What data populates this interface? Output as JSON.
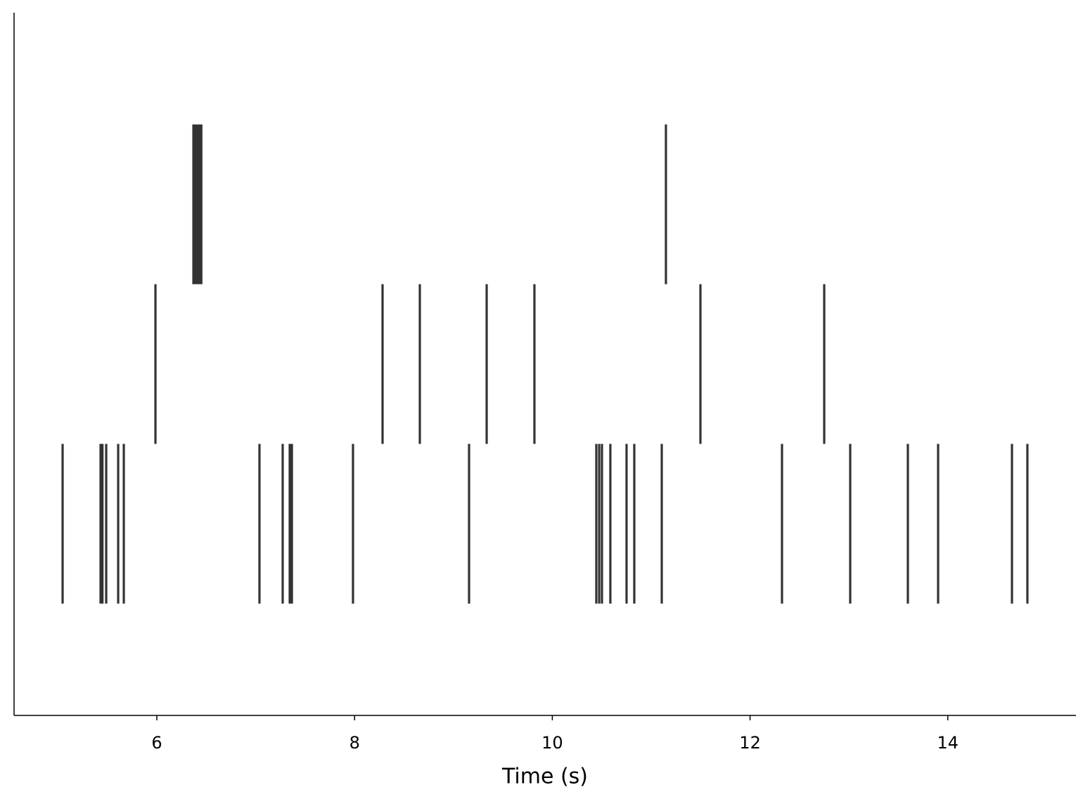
{
  "chart_data": {
    "type": "eventplot",
    "xlabel": "Time (s)",
    "xlim": [
      4.556,
      15.296
    ],
    "ylim": [
      -1.2,
      3.2
    ],
    "xticks": [
      6,
      8,
      10,
      12,
      14
    ],
    "color": "#333333",
    "linelength": 1,
    "lineoffsets": [
      0,
      1,
      2
    ],
    "series": [
      {
        "values": [
          5.047,
          5.431,
          5.45,
          5.488,
          5.609,
          5.666,
          7.038,
          7.273,
          7.344,
          7.366,
          7.984,
          9.158,
          10.445,
          10.474,
          10.502,
          10.587,
          10.751,
          10.829,
          11.107,
          12.323,
          13.013,
          13.596,
          13.902,
          14.649,
          14.805
        ]
      },
      {
        "values": [
          5.986,
          8.283,
          8.66,
          9.336,
          9.819,
          11.498,
          12.75
        ]
      },
      {
        "values": [
          6.37,
          6.39,
          6.41,
          6.43,
          6.45,
          11.149
        ]
      }
    ]
  }
}
